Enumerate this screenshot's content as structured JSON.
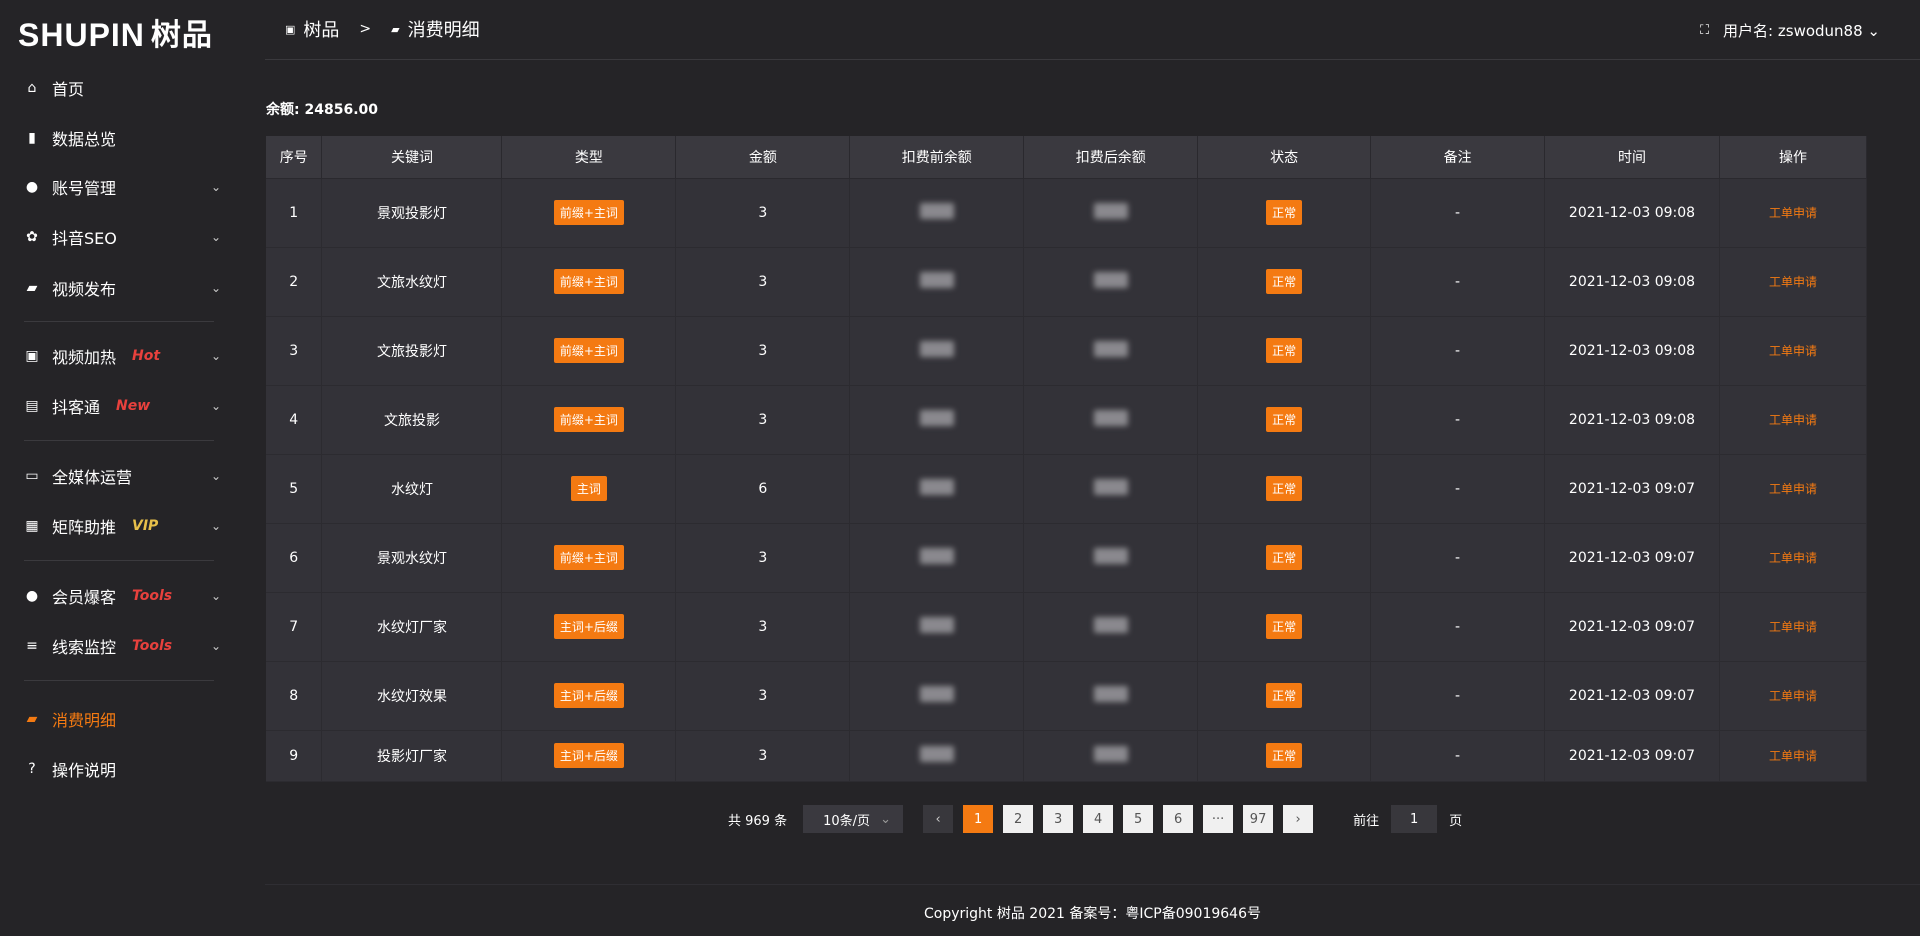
{
  "logo": {
    "text": "SHUPIN",
    "cn": "树品"
  },
  "sidebar": {
    "items": [
      {
        "label": "首页",
        "icon": "home-icon",
        "glyph": "⌂"
      },
      {
        "label": "数据总览",
        "icon": "bar-chart-icon",
        "glyph": "▮"
      },
      {
        "label": "账号管理",
        "icon": "user-icon",
        "glyph": "●",
        "chev": true
      },
      {
        "label": "抖音SEO",
        "icon": "gear-icon",
        "glyph": "✿",
        "chev": true
      },
      {
        "label": "视频发布",
        "icon": "video-icon",
        "glyph": "▰",
        "chev": true
      },
      {
        "label": "视频加热",
        "icon": "monitor-icon",
        "glyph": "▣",
        "tag": "Hot",
        "tag_color": "#e8413d",
        "chev": true
      },
      {
        "label": "抖客通",
        "icon": "chat-icon",
        "glyph": "▤",
        "tag": "New",
        "tag_color": "#e8413d",
        "chev": true
      },
      {
        "label": "全媒体运营",
        "icon": "desktop-icon",
        "glyph": "▭",
        "chev": true
      },
      {
        "label": "矩阵助推",
        "icon": "grid-icon",
        "glyph": "▦",
        "tag": "VIP",
        "tag_color": "#e8c04a",
        "chev": true
      },
      {
        "label": "会员爆客",
        "icon": "member-icon",
        "glyph": "●",
        "tag": "Tools",
        "tag_color": "#e8413d",
        "chev": true
      },
      {
        "label": "线索监控",
        "icon": "sliders-icon",
        "glyph": "≡",
        "tag": "Tools",
        "tag_color": "#e8413d",
        "chev": true
      },
      {
        "label": "消费明细",
        "icon": "wallet-icon",
        "glyph": "▰",
        "active": true
      },
      {
        "label": "操作说明",
        "icon": "help-icon",
        "glyph": "?"
      }
    ]
  },
  "header": {
    "crumb_root": "树品",
    "crumb_sep": ">",
    "crumb_current": "消费明细",
    "user_label": "用户名:",
    "username": "zswodun88"
  },
  "balance": {
    "label": "余额:",
    "value": "24856.00"
  },
  "table": {
    "columns": [
      "序号",
      "关键词",
      "类型",
      "金额",
      "扣费前余额",
      "扣费后余额",
      "状态",
      "备注",
      "时间",
      "操作"
    ],
    "rows": [
      {
        "no": "1",
        "keyword": "景观投影灯",
        "type": "前缀+主词",
        "amount": "3",
        "status": "正常",
        "note": "-",
        "time": "2021-12-03 09:08",
        "op": "工单申请"
      },
      {
        "no": "2",
        "keyword": "文旅水纹灯",
        "type": "前缀+主词",
        "amount": "3",
        "status": "正常",
        "note": "-",
        "time": "2021-12-03 09:08",
        "op": "工单申请"
      },
      {
        "no": "3",
        "keyword": "文旅投影灯",
        "type": "前缀+主词",
        "amount": "3",
        "status": "正常",
        "note": "-",
        "time": "2021-12-03 09:08",
        "op": "工单申请"
      },
      {
        "no": "4",
        "keyword": "文旅投影",
        "type": "前缀+主词",
        "amount": "3",
        "status": "正常",
        "note": "-",
        "time": "2021-12-03 09:08",
        "op": "工单申请"
      },
      {
        "no": "5",
        "keyword": "水纹灯",
        "type": "主词",
        "amount": "6",
        "status": "正常",
        "note": "-",
        "time": "2021-12-03 09:07",
        "op": "工单申请"
      },
      {
        "no": "6",
        "keyword": "景观水纹灯",
        "type": "前缀+主词",
        "amount": "3",
        "status": "正常",
        "note": "-",
        "time": "2021-12-03 09:07",
        "op": "工单申请"
      },
      {
        "no": "7",
        "keyword": "水纹灯厂家",
        "type": "主词+后缀",
        "amount": "3",
        "status": "正常",
        "note": "-",
        "time": "2021-12-03 09:07",
        "op": "工单申请"
      },
      {
        "no": "8",
        "keyword": "水纹灯效果",
        "type": "主词+后缀",
        "amount": "3",
        "status": "正常",
        "note": "-",
        "time": "2021-12-03 09:07",
        "op": "工单申请"
      },
      {
        "no": "9",
        "keyword": "投影灯厂家",
        "type": "主词+后缀",
        "amount": "3",
        "status": "正常",
        "note": "-",
        "time": "2021-12-03 09:07",
        "op": "工单申请"
      }
    ]
  },
  "pagination": {
    "total": "共 969 条",
    "page_size": "10条/页",
    "prev": "‹",
    "next": "›",
    "pages": [
      "1",
      "2",
      "3",
      "4",
      "5",
      "6",
      "···",
      "97"
    ],
    "current": "1",
    "goto_label": "前往",
    "goto_value": "1",
    "goto_suffix": "页"
  },
  "footer": {
    "text": "Copyright 树品 2021 备案号：粤ICP备09019646号"
  },
  "colors": {
    "accent": "#f47a12",
    "background": "#252427",
    "table": "#333238"
  }
}
